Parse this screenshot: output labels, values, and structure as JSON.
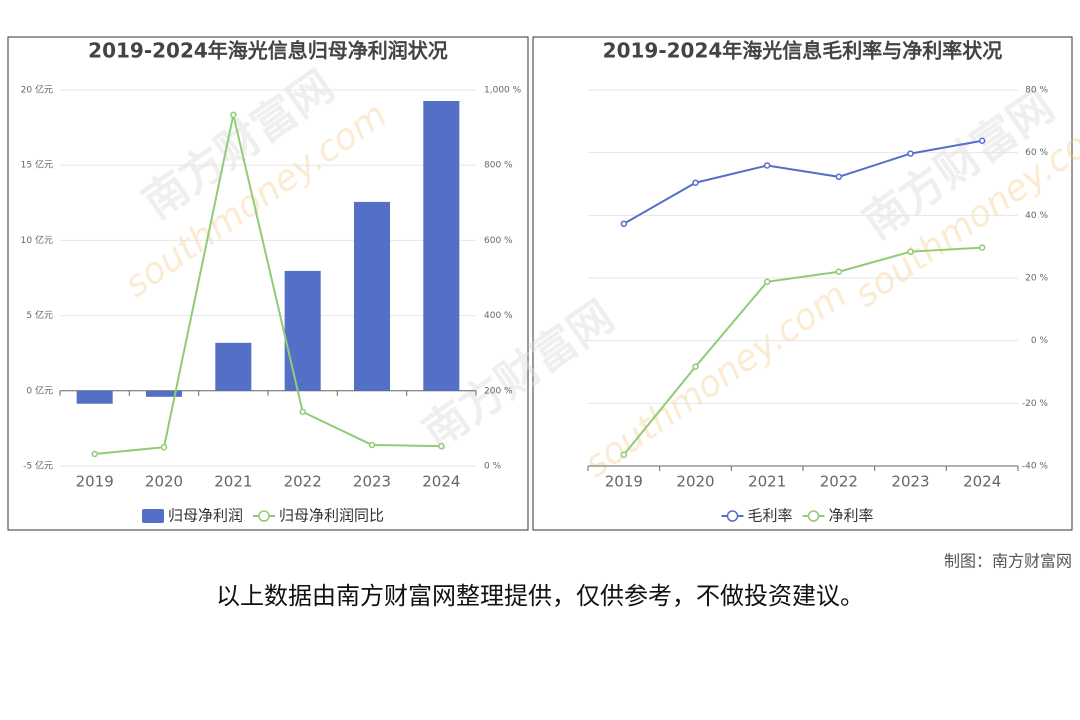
{
  "chart_data": [
    {
      "type": "bar",
      "title": "2019-2024年海光信息归母净利润状况",
      "categories": [
        "2019",
        "2020",
        "2021",
        "2022",
        "2023",
        "2024"
      ],
      "series": [
        {
          "name": "归母净利润",
          "type": "bar",
          "color": "#5470c6",
          "values": [
            -0.86,
            -0.4,
            3.19,
            7.97,
            12.56,
            19.27
          ]
        },
        {
          "name": "归母净利润同比",
          "type": "line",
          "axis": "y2",
          "color": "#91cc75",
          "values": [
            32,
            50,
            934,
            144,
            56,
            53
          ]
        }
      ],
      "ylim": [
        -5,
        20
      ],
      "yticks": [
        {
          "value": -5,
          "label": "-5 亿元"
        },
        {
          "value": 0,
          "label": "0 亿元"
        },
        {
          "value": 5,
          "label": "5 亿元"
        },
        {
          "value": 10,
          "label": "10 亿元"
        },
        {
          "value": 15,
          "label": "15 亿元"
        },
        {
          "value": 20,
          "label": "20 亿元"
        }
      ],
      "y2lim": [
        0,
        1000
      ],
      "y2ticks": [
        {
          "value": 0,
          "label": "0 %"
        },
        {
          "value": 200,
          "label": "200 %"
        },
        {
          "value": 400,
          "label": "400 %"
        },
        {
          "value": 600,
          "label": "600 %"
        },
        {
          "value": 800,
          "label": "800 %"
        },
        {
          "value": 1000,
          "label": "1,000 %"
        }
      ],
      "grid": true,
      "legend": "bottom"
    },
    {
      "type": "line",
      "title": "2019-2024年海光信息毛利率与净利率状况",
      "categories": [
        "2019",
        "2020",
        "2021",
        "2022",
        "2023",
        "2024"
      ],
      "series": [
        {
          "name": "毛利率",
          "color": "#5470c6",
          "values": [
            37.3,
            50.4,
            55.9,
            52.3,
            59.7,
            63.8
          ]
        },
        {
          "name": "净利率",
          "color": "#91cc75",
          "values": [
            -36.4,
            -8.3,
            18.8,
            22,
            28.4,
            29.7
          ]
        }
      ],
      "ylim": [
        -40,
        80
      ],
      "yticks": [
        {
          "value": -40,
          "label": "-40 %"
        },
        {
          "value": -20,
          "label": "-20 %"
        },
        {
          "value": 0,
          "label": "0 %"
        },
        {
          "value": 20,
          "label": "20 %"
        },
        {
          "value": 40,
          "label": "40 %"
        },
        {
          "value": 60,
          "label": "60 %"
        },
        {
          "value": 80,
          "label": "80 %"
        }
      ],
      "yaxis_side": "right",
      "grid": true,
      "legend": "bottom"
    }
  ],
  "watermark": "南方财富网",
  "watermark_url": "southmoney.com",
  "credit": "制图：南方财富网",
  "disclaimer": "以上数据由南方财富网整理提供，仅供参考，不做投资建议。"
}
